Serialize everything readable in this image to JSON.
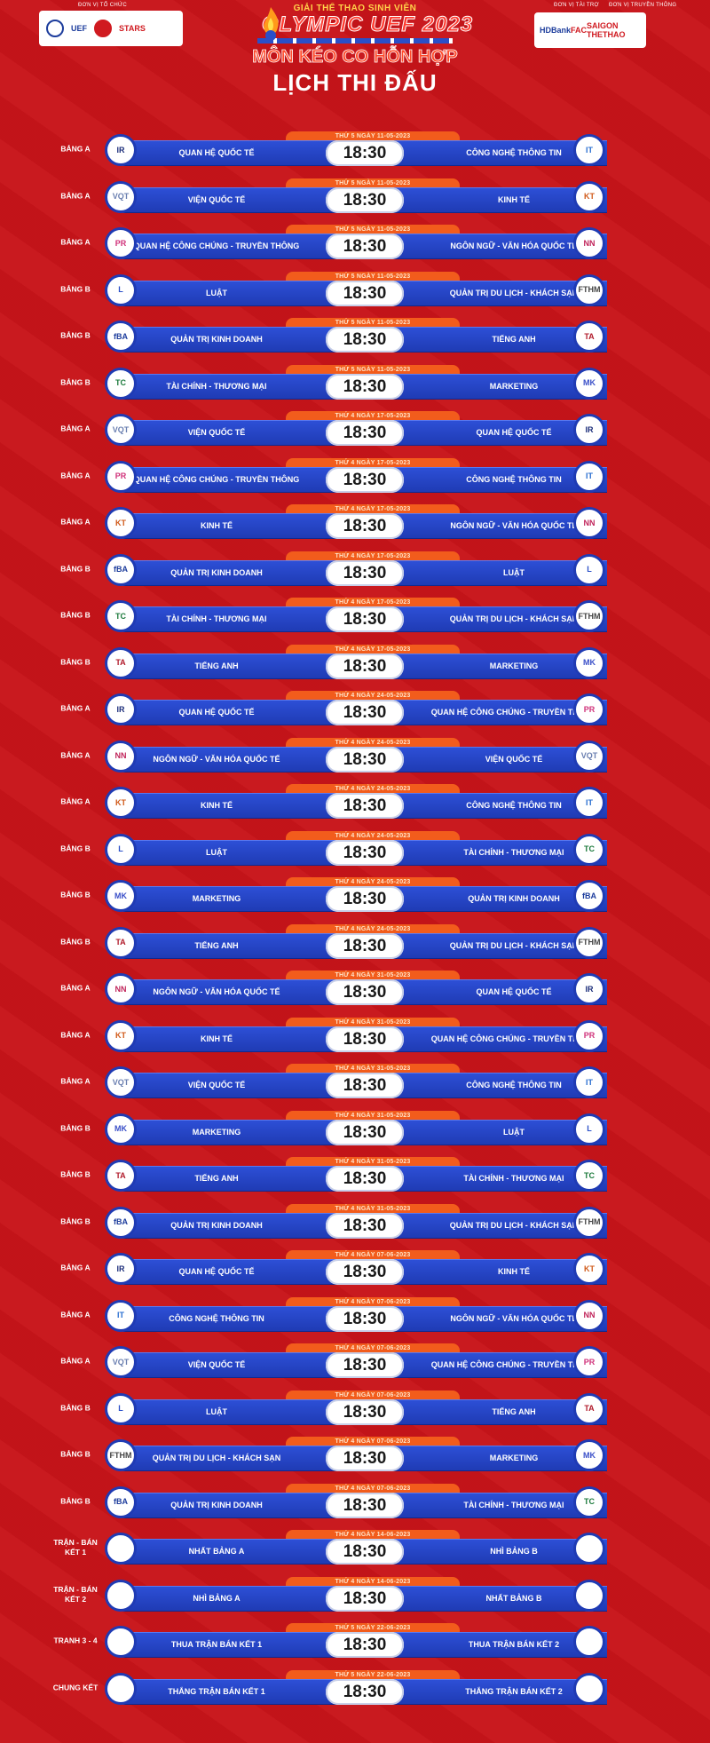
{
  "header": {
    "left_sponsor_label": "ĐƠN VỊ TỔ CHỨC",
    "left_logos": [
      "UEF",
      "STARS"
    ],
    "subtitle": "GIẢI THỂ THAO SINH VIÊN",
    "event": "OLYMPIC UEF 2023",
    "sport": "MÔN KÉO CO HỖN HỢP",
    "page_title": "LỊCH THI ĐẤU",
    "right_sponsor_label": "ĐƠN VỊ TÀI TRỢ",
    "right_partner_label": "ĐƠN VỊ TRUYỀN THÔNG",
    "right_logos": [
      "HDBank",
      "FAC",
      "SAIGON THETHAO"
    ]
  },
  "colors": {
    "background": "#c8141a",
    "bar": "#2d4fd6",
    "date_tab": "#f25c1c",
    "time_box": "#ffffff"
  },
  "matches": [
    {
      "group": "BẢNG A",
      "date": "THỨ 5 NGÀY 11-05-2023",
      "time": "18:30",
      "home": "QUAN HỆ QUỐC TẾ",
      "away": "CÔNG NGHỆ THÔNG TIN",
      "home_logo": "IR",
      "away_logo": "IT"
    },
    {
      "group": "BẢNG A",
      "date": "THỨ 5 NGÀY 11-05-2023",
      "time": "18:30",
      "home": "VIỆN QUỐC TẾ",
      "away": "KINH TẾ",
      "home_logo": "VQT",
      "away_logo": "KT"
    },
    {
      "group": "BẢNG A",
      "date": "THỨ 5 NGÀY 11-05-2023",
      "time": "18:30",
      "home": "QUAN HỆ CÔNG CHÚNG - TRUYỀN THÔNG",
      "away": "NGÔN NGỮ - VĂN HÓA QUỐC TẾ",
      "home_logo": "PR",
      "away_logo": "NN"
    },
    {
      "group": "BẢNG B",
      "date": "THỨ 5 NGÀY 11-05-2023",
      "time": "18:30",
      "home": "LUẬT",
      "away": "QUẢN TRỊ DU LỊCH - KHÁCH SẠN",
      "home_logo": "L",
      "away_logo": "FTHM"
    },
    {
      "group": "BẢNG B",
      "date": "THỨ 5 NGÀY 11-05-2023",
      "time": "18:30",
      "home": "QUẢN TRỊ KINH DOANH",
      "away": "TIẾNG ANH",
      "home_logo": "fBA",
      "away_logo": "TA"
    },
    {
      "group": "BẢNG B",
      "date": "THỨ 5 NGÀY 11-05-2023",
      "time": "18:30",
      "home": "TÀI CHÍNH - THƯƠNG MẠI",
      "away": "MARKETING",
      "home_logo": "TC",
      "away_logo": "MK"
    },
    {
      "group": "BẢNG A",
      "date": "THỨ 4 NGÀY 17-05-2023",
      "time": "18:30",
      "home": "VIỆN QUỐC TẾ",
      "away": "QUAN HỆ QUỐC TẾ",
      "home_logo": "VQT",
      "away_logo": "IR"
    },
    {
      "group": "BẢNG A",
      "date": "THỨ 4 NGÀY 17-05-2023",
      "time": "18:30",
      "home": "QUAN HỆ CÔNG CHÚNG - TRUYỀN THÔNG",
      "away": "CÔNG NGHỆ THÔNG TIN",
      "home_logo": "PR",
      "away_logo": "IT"
    },
    {
      "group": "BẢNG A",
      "date": "THỨ 4 NGÀY 17-05-2023",
      "time": "18:30",
      "home": "KINH TẾ",
      "away": "NGÔN NGỮ - VĂN HÓA QUỐC TẾ",
      "home_logo": "KT",
      "away_logo": "NN"
    },
    {
      "group": "BẢNG B",
      "date": "THỨ 4 NGÀY 17-05-2023",
      "time": "18:30",
      "home": "QUẢN TRỊ KINH DOANH",
      "away": "LUẬT",
      "home_logo": "fBA",
      "away_logo": "L"
    },
    {
      "group": "BẢNG B",
      "date": "THỨ 4 NGÀY 17-05-2023",
      "time": "18:30",
      "home": "TÀI CHÍNH - THƯƠNG MẠI",
      "away": "QUẢN TRỊ DU LỊCH - KHÁCH SẠN",
      "home_logo": "TC",
      "away_logo": "FTHM"
    },
    {
      "group": "BẢNG B",
      "date": "THỨ 4 NGÀY 17-05-2023",
      "time": "18:30",
      "home": "TIẾNG ANH",
      "away": "MARKETING",
      "home_logo": "TA",
      "away_logo": "MK"
    },
    {
      "group": "BẢNG A",
      "date": "THỨ 4 NGÀY 24-05-2023",
      "time": "18:30",
      "home": "QUAN HỆ QUỐC TẾ",
      "away": "QUAN HỆ CÔNG CHÚNG - TRUYỀN THÔNG",
      "home_logo": "IR",
      "away_logo": "PR"
    },
    {
      "group": "BẢNG A",
      "date": "THỨ 4 NGÀY 24-05-2023",
      "time": "18:30",
      "home": "NGÔN NGỮ - VĂN HÓA QUỐC TẾ",
      "away": "VIỆN QUỐC TẾ",
      "home_logo": "NN",
      "away_logo": "VQT"
    },
    {
      "group": "BẢNG A",
      "date": "THỨ 4 NGÀY 24-05-2023",
      "time": "18:30",
      "home": "KINH TẾ",
      "away": "CÔNG NGHỆ THÔNG TIN",
      "home_logo": "KT",
      "away_logo": "IT"
    },
    {
      "group": "BẢNG B",
      "date": "THỨ 4 NGÀY 24-05-2023",
      "time": "18:30",
      "home": "LUẬT",
      "away": "TÀI CHÍNH - THƯƠNG MẠI",
      "home_logo": "L",
      "away_logo": "TC"
    },
    {
      "group": "BẢNG B",
      "date": "THỨ 4 NGÀY 24-05-2023",
      "time": "18:30",
      "home": "MARKETING",
      "away": "QUẢN TRỊ KINH DOANH",
      "home_logo": "MK",
      "away_logo": "fBA"
    },
    {
      "group": "BẢNG B",
      "date": "THỨ 4 NGÀY 24-05-2023",
      "time": "18:30",
      "home": "TIẾNG ANH",
      "away": "QUẢN TRỊ DU LỊCH - KHÁCH SẠN",
      "home_logo": "TA",
      "away_logo": "FTHM"
    },
    {
      "group": "BẢNG A",
      "date": "THỨ 4 NGÀY 31-05-2023",
      "time": "18:30",
      "home": "NGÔN NGỮ - VĂN HÓA QUỐC TẾ",
      "away": "QUAN HỆ QUỐC TẾ",
      "home_logo": "NN",
      "away_logo": "IR"
    },
    {
      "group": "BẢNG A",
      "date": "THỨ 4 NGÀY 31-05-2023",
      "time": "18:30",
      "home": "KINH TẾ",
      "away": "QUAN HỆ CÔNG CHÚNG - TRUYỀN THÔNG",
      "home_logo": "KT",
      "away_logo": "PR"
    },
    {
      "group": "BẢNG A",
      "date": "THỨ 4 NGÀY 31-05-2023",
      "time": "18:30",
      "home": "VIỆN QUỐC TẾ",
      "away": "CÔNG NGHỆ THÔNG TIN",
      "home_logo": "VQT",
      "away_logo": "IT"
    },
    {
      "group": "BẢNG B",
      "date": "THỨ 4 NGÀY 31-05-2023",
      "time": "18:30",
      "home": "MARKETING",
      "away": "LUẬT",
      "home_logo": "MK",
      "away_logo": "L"
    },
    {
      "group": "BẢNG B",
      "date": "THỨ 4 NGÀY 31-05-2023",
      "time": "18:30",
      "home": "TIẾNG ANH",
      "away": "TÀI CHÍNH - THƯƠNG MẠI",
      "home_logo": "TA",
      "away_logo": "TC"
    },
    {
      "group": "BẢNG B",
      "date": "THỨ 4 NGÀY 31-05-2023",
      "time": "18:30",
      "home": "QUẢN TRỊ KINH DOANH",
      "away": "QUẢN TRỊ DU LỊCH - KHÁCH SẠN",
      "home_logo": "fBA",
      "away_logo": "FTHM"
    },
    {
      "group": "BẢNG A",
      "date": "THỨ 4 NGÀY 07-06-2023",
      "time": "18:30",
      "home": "QUAN HỆ QUỐC TẾ",
      "away": "KINH TẾ",
      "home_logo": "IR",
      "away_logo": "KT"
    },
    {
      "group": "BẢNG A",
      "date": "THỨ 4 NGÀY 07-06-2023",
      "time": "18:30",
      "home": "CÔNG NGHỆ THÔNG TIN",
      "away": "NGÔN NGỮ - VĂN HÓA QUỐC TẾ",
      "home_logo": "IT",
      "away_logo": "NN"
    },
    {
      "group": "BẢNG A",
      "date": "THỨ 4 NGÀY 07-06-2023",
      "time": "18:30",
      "home": "VIỆN QUỐC TẾ",
      "away": "QUAN HỆ CÔNG CHÚNG - TRUYỀN THÔNG",
      "home_logo": "VQT",
      "away_logo": "PR"
    },
    {
      "group": "BẢNG B",
      "date": "THỨ 4 NGÀY 07-06-2023",
      "time": "18:30",
      "home": "LUẬT",
      "away": "TIẾNG ANH",
      "home_logo": "L",
      "away_logo": "TA"
    },
    {
      "group": "BẢNG B",
      "date": "THỨ 4 NGÀY 07-06-2023",
      "time": "18:30",
      "home": "QUẢN TRỊ DU LỊCH - KHÁCH SẠN",
      "away": "MARKETING",
      "home_logo": "FTHM",
      "away_logo": "MK"
    },
    {
      "group": "BẢNG B",
      "date": "THỨ 4 NGÀY 07-06-2023",
      "time": "18:30",
      "home": "QUẢN TRỊ KINH DOANH",
      "away": "TÀI CHÍNH - THƯƠNG MẠI",
      "home_logo": "fBA",
      "away_logo": "TC"
    },
    {
      "group": "TRẬN - BÁN KẾT 1",
      "date": "THỨ 4 NGÀY 14-06-2023",
      "time": "18:30",
      "home": "NHẤT BẢNG A",
      "away": "NHÌ BẢNG B",
      "home_logo": "",
      "away_logo": ""
    },
    {
      "group": "TRẬN - BÁN KẾT 2",
      "date": "THỨ 4 NGÀY 14-06-2023",
      "time": "18:30",
      "home": "NHÌ BẢNG A",
      "away": "NHẤT BẢNG B",
      "home_logo": "",
      "away_logo": ""
    },
    {
      "group": "TRANH 3 - 4",
      "date": "THỨ 5 NGÀY 22-06-2023",
      "time": "18:30",
      "home": "THUA TRẬN BÁN KẾT 1",
      "away": "THUA TRẬN BÁN KẾT 2",
      "home_logo": "",
      "away_logo": ""
    },
    {
      "group": "CHUNG KẾT",
      "date": "THỨ 5 NGÀY 22-06-2023",
      "time": "18:30",
      "home": "THẮNG TRẬN BÁN KẾT 1",
      "away": "THẮNG TRẬN BÁN KẾT 2",
      "home_logo": "",
      "away_logo": ""
    }
  ]
}
